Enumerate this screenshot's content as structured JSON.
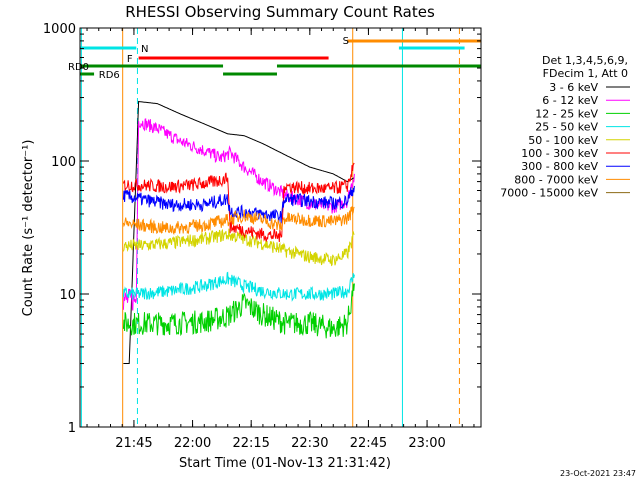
{
  "chart_data": {
    "type": "line",
    "title": "RHESSI Observing Summary Count Rates",
    "xlabel": "Start Time (01-Nov-13 21:31:42)",
    "ylabel": "Count Rate (s⁻¹ detector⁻¹)",
    "y_scale": "log",
    "ylim": [
      1,
      1000
    ],
    "xlim_minutes": [
      21.52,
      23.23
    ],
    "x_tick_labels": [
      "21:45",
      "22:00",
      "22:15",
      "22:30",
      "22:45",
      "23:00"
    ],
    "x_ticks_hours": [
      21.75,
      22.0,
      22.25,
      22.5,
      22.75,
      23.0
    ],
    "y_tick_labels": [
      "1",
      "10",
      "100",
      "1000"
    ],
    "y_ticks": [
      1,
      10,
      100,
      1000
    ],
    "legend_header": [
      "Det 1,3,4,5,6,9,",
      "FDecim 1, Att 0"
    ],
    "legend_placement": "right",
    "timestamp": "23-Oct-2021 23:47",
    "flags": [
      {
        "label": "N",
        "color": "#00e5e5",
        "segments": [
          [
            21.52,
            21.76
          ],
          [
            22.88,
            23.16
          ]
        ],
        "label_at": 21.78
      },
      {
        "label": "F",
        "color": "#ff0000",
        "segments": [
          [
            21.77,
            22.58
          ]
        ],
        "label_at": 21.72
      },
      {
        "label": "S",
        "color": "#ff8c00",
        "segments": [
          [
            22.66,
            23.24
          ]
        ],
        "label_at": 22.64
      },
      {
        "label": "RD0",
        "color": "#008800",
        "segments": [
          [
            21.52,
            22.13
          ],
          [
            22.36,
            23.24
          ]
        ],
        "label_at": 21.52
      },
      {
        "label": "RD6",
        "color": "#008800",
        "segments": [
          [
            21.52,
            21.58
          ],
          [
            22.13,
            22.36
          ]
        ],
        "label_at": 21.6
      }
    ],
    "vlines": [
      {
        "x": 21.526,
        "color": "#00e5e5",
        "style": "solid"
      },
      {
        "x": 21.702,
        "color": "#ff8c00",
        "style": "solid"
      },
      {
        "x": 21.765,
        "color": "#00e5e5",
        "style": "dash"
      },
      {
        "x": 22.683,
        "color": "#ff8c00",
        "style": "solid"
      },
      {
        "x": 22.895,
        "color": "#00e5e5",
        "style": "solid"
      },
      {
        "x": 23.138,
        "color": "#ff8c00",
        "style": "dash"
      }
    ],
    "series": [
      {
        "name": "3 - 6 keV",
        "color": "#000000",
        "points": [
          [
            21.705,
            3.0
          ],
          [
            21.73,
            3.0
          ],
          [
            21.77,
            280
          ],
          [
            21.85,
            270
          ],
          [
            21.95,
            225
          ],
          [
            22.05,
            190
          ],
          [
            22.15,
            160
          ],
          [
            22.22,
            155
          ],
          [
            22.3,
            135
          ],
          [
            22.4,
            110
          ],
          [
            22.5,
            90
          ],
          [
            22.6,
            80
          ],
          [
            22.66,
            70
          ],
          [
            22.69,
            75
          ]
        ]
      },
      {
        "name": "6 - 12 keV",
        "color": "#ff00ff",
        "points": [
          [
            21.705,
            9.0
          ],
          [
            21.76,
            9.0
          ],
          [
            21.77,
            200
          ],
          [
            21.85,
            175
          ],
          [
            21.95,
            140
          ],
          [
            22.05,
            120
          ],
          [
            22.12,
            105
          ],
          [
            22.16,
            115
          ],
          [
            22.22,
            90
          ],
          [
            22.3,
            70
          ],
          [
            22.4,
            55
          ],
          [
            22.5,
            48
          ],
          [
            22.6,
            45
          ],
          [
            22.66,
            50
          ],
          [
            22.69,
            80
          ]
        ]
      },
      {
        "name": "12 - 25 keV",
        "color": "#00d000",
        "points": [
          [
            21.705,
            6.0
          ],
          [
            21.77,
            6.0
          ],
          [
            21.9,
            6.0
          ],
          [
            22.05,
            6.2
          ],
          [
            22.15,
            6.8
          ],
          [
            22.22,
            8.5
          ],
          [
            22.3,
            7.0
          ],
          [
            22.4,
            6.0
          ],
          [
            22.5,
            6.0
          ],
          [
            22.6,
            5.5
          ],
          [
            22.66,
            6.0
          ],
          [
            22.69,
            12
          ]
        ]
      },
      {
        "name": "25 - 50 keV",
        "color": "#00e5e5",
        "points": [
          [
            21.705,
            10
          ],
          [
            21.77,
            10
          ],
          [
            21.9,
            10.5
          ],
          [
            22.05,
            11.5
          ],
          [
            22.15,
            13
          ],
          [
            22.22,
            11.5
          ],
          [
            22.3,
            10.5
          ],
          [
            22.4,
            10
          ],
          [
            22.5,
            10
          ],
          [
            22.6,
            10
          ],
          [
            22.66,
            10.5
          ],
          [
            22.69,
            14
          ]
        ]
      },
      {
        "name": "50 - 100 keV",
        "color": "#d4d400",
        "points": [
          [
            21.705,
            23
          ],
          [
            21.77,
            23
          ],
          [
            21.9,
            24
          ],
          [
            22.05,
            26
          ],
          [
            22.15,
            28
          ],
          [
            22.22,
            26
          ],
          [
            22.3,
            24
          ],
          [
            22.4,
            21
          ],
          [
            22.5,
            19
          ],
          [
            22.6,
            18
          ],
          [
            22.66,
            20
          ],
          [
            22.69,
            28
          ]
        ]
      },
      {
        "name": "100 - 300 keV",
        "color": "#ff0000",
        "points": [
          [
            21.705,
            66
          ],
          [
            21.77,
            66
          ],
          [
            21.9,
            64
          ],
          [
            22.0,
            66
          ],
          [
            22.1,
            70
          ],
          [
            22.15,
            75
          ],
          [
            22.16,
            32
          ],
          [
            22.3,
            28
          ],
          [
            22.38,
            27
          ],
          [
            22.39,
            65
          ],
          [
            22.5,
            62
          ],
          [
            22.6,
            62
          ],
          [
            22.66,
            65
          ],
          [
            22.69,
            95
          ]
        ]
      },
      {
        "name": "300 - 800 keV",
        "color": "#0000ff",
        "points": [
          [
            21.705,
            55
          ],
          [
            21.77,
            52
          ],
          [
            21.9,
            47
          ],
          [
            22.05,
            47
          ],
          [
            22.15,
            52
          ],
          [
            22.16,
            42
          ],
          [
            22.3,
            40
          ],
          [
            22.38,
            38
          ],
          [
            22.39,
            52
          ],
          [
            22.5,
            50
          ],
          [
            22.6,
            48
          ],
          [
            22.66,
            50
          ],
          [
            22.69,
            65
          ]
        ]
      },
      {
        "name": "800 - 7000 keV",
        "color": "#ff8c00",
        "points": [
          [
            21.705,
            34
          ],
          [
            21.77,
            33
          ],
          [
            21.9,
            31
          ],
          [
            22.05,
            33
          ],
          [
            22.15,
            36
          ],
          [
            22.22,
            39
          ],
          [
            22.3,
            36
          ],
          [
            22.38,
            32
          ],
          [
            22.39,
            37
          ],
          [
            22.5,
            36
          ],
          [
            22.6,
            35
          ],
          [
            22.66,
            37
          ],
          [
            22.69,
            45
          ]
        ]
      },
      {
        "name": "7000 - 15000 keV",
        "color": "#8b6914",
        "points": [
          [
            21.705,
            1.0
          ],
          [
            21.77,
            1.0
          ],
          [
            22.69,
            1.0
          ]
        ]
      }
    ]
  }
}
